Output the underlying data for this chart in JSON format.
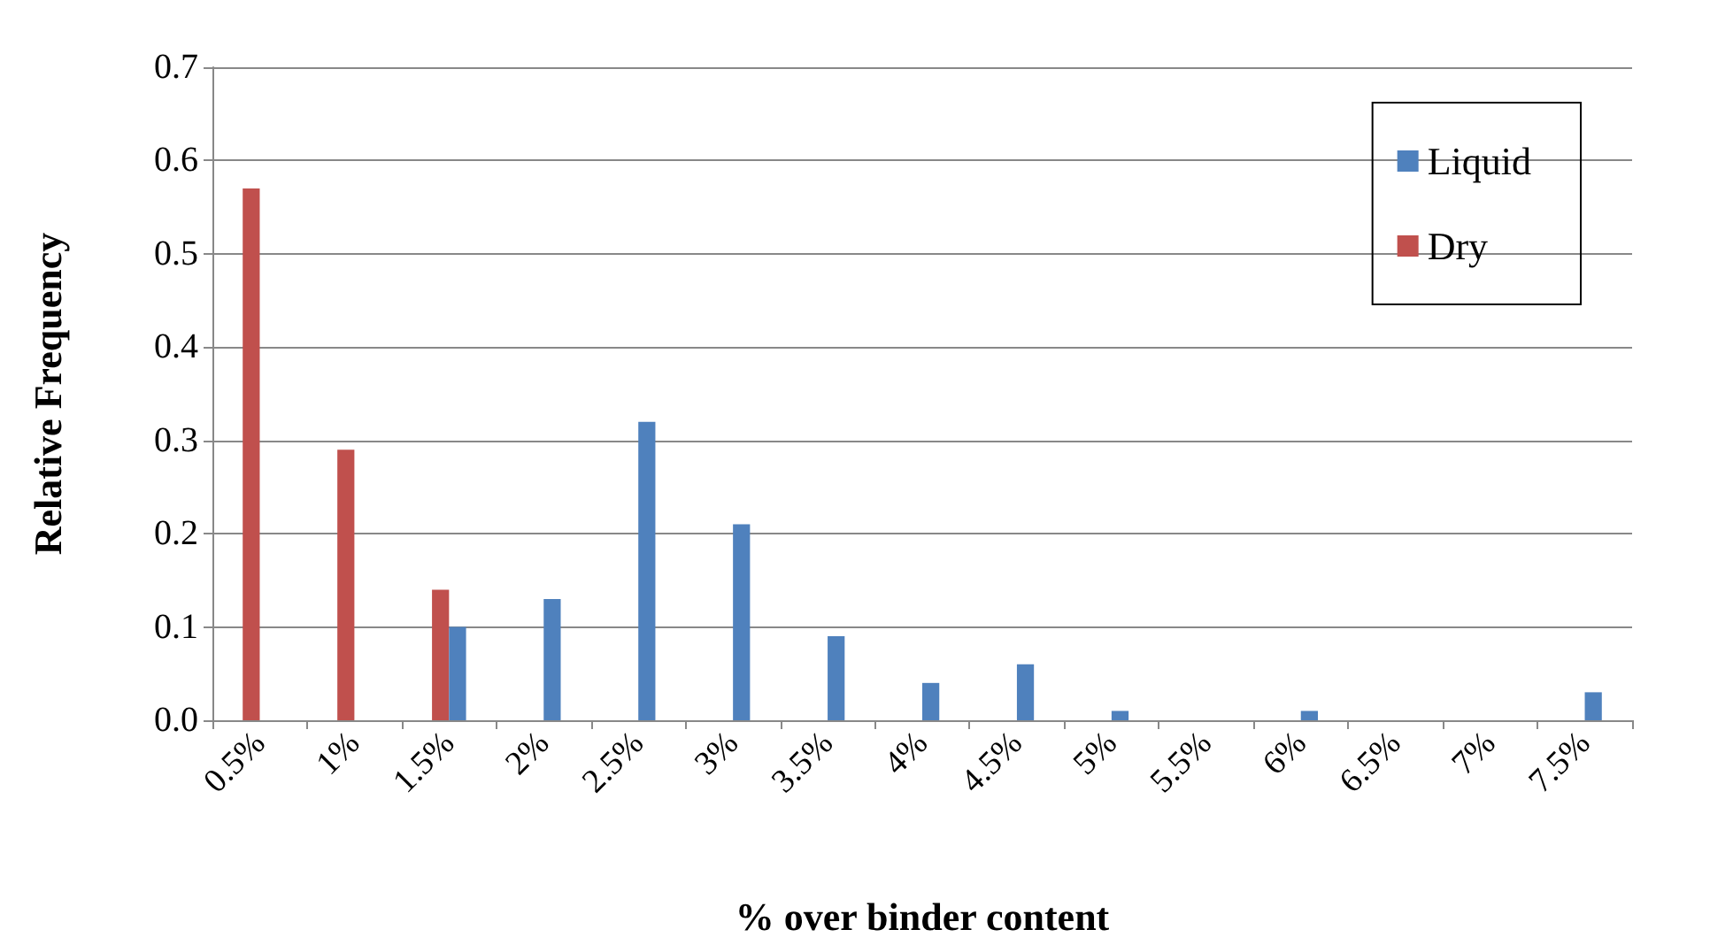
{
  "chart_data": {
    "type": "bar",
    "xlabel": "% over binder content",
    "ylabel": "Relative Frequency",
    "categories": [
      "0.5%",
      "1%",
      "1.5%",
      "2%",
      "2.5%",
      "3%",
      "3.5%",
      "4%",
      "4.5%",
      "5%",
      "5.5%",
      "6%",
      "6.5%",
      "7%",
      "7.5%"
    ],
    "series": [
      {
        "name": "Liquid",
        "color": "#4f81bd",
        "values": [
          0,
          0,
          0.1,
          0.13,
          0.32,
          0.21,
          0.09,
          0.04,
          0.06,
          0.01,
          0,
          0.01,
          0,
          0,
          0.03
        ]
      },
      {
        "name": "Dry",
        "color": "#c0504d",
        "values": [
          0.57,
          0.29,
          0.14,
          0,
          0,
          0,
          0,
          0,
          0,
          0,
          0,
          0,
          0,
          0,
          0
        ]
      }
    ],
    "ylim": [
      0,
      0.7
    ],
    "yticks": [
      {
        "value": 0,
        "label": "0.0"
      },
      0.1,
      0.2,
      0.3,
      0.4,
      0.5,
      0.6,
      0.7
    ],
    "grid": "y",
    "legend": "top right"
  }
}
